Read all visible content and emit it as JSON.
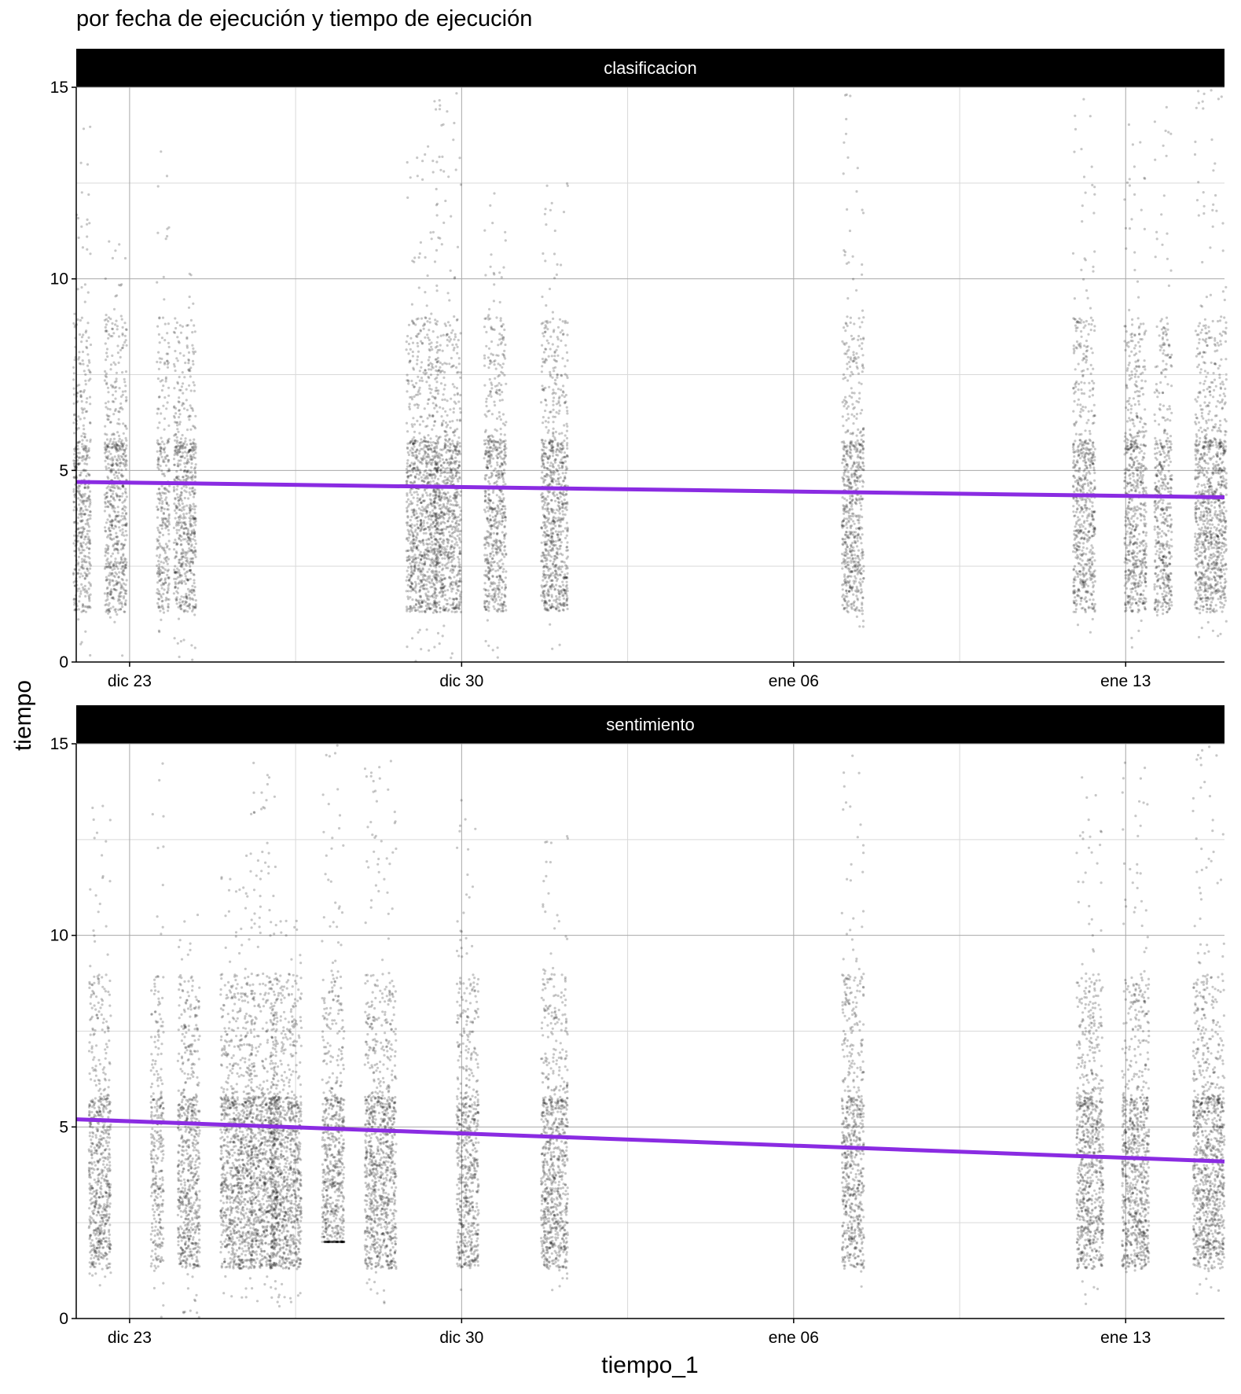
{
  "chart_data": {
    "type": "scatter",
    "title": "por fecha de ejecución y tiempo de ejecución",
    "xlabel": "tiempo_1",
    "ylabel": "tiempo",
    "xlim": [
      "2023-12-21T21:00",
      "2024-01-15T02:00"
    ],
    "ylim": [
      0,
      15
    ],
    "x_ticks": [
      {
        "date": "2023-12-23",
        "label": "dic 23"
      },
      {
        "date": "2023-12-30",
        "label": "dic 30"
      },
      {
        "date": "2024-01-06",
        "label": "ene 06"
      },
      {
        "date": "2024-01-13",
        "label": "ene 13"
      }
    ],
    "y_ticks": [
      0,
      5,
      10,
      15
    ],
    "grid": true,
    "point_color": "#000000",
    "trend_color": "#8a2be2",
    "facets": [
      {
        "name": "clasificacion",
        "trend": {
          "start": {
            "x": "2023-12-21T21:00",
            "y": 4.7
          },
          "end": {
            "x": "2024-01-15T02:00",
            "y": 4.3
          }
        },
        "clusters": [
          {
            "x": "2023-12-22T00:00",
            "ymin": 0,
            "ymax": 14.5,
            "density": 2
          },
          {
            "x": "2023-12-22T17:00",
            "ymin": 0,
            "ymax": 11.6,
            "density": 3
          },
          {
            "x": "2023-12-23T17:00",
            "ymin": 0.5,
            "ymax": 13.5,
            "density": 1
          },
          {
            "x": "2023-12-24T04:00",
            "ymin": 0,
            "ymax": 10.6,
            "density": 3
          },
          {
            "x": "2023-12-29T04:00",
            "ymin": 0,
            "ymax": 13.5,
            "density": 5
          },
          {
            "x": "2023-12-29T17:00",
            "ymin": 0,
            "ymax": 15,
            "density": 4
          },
          {
            "x": "2023-12-30T17:00",
            "ymin": 0,
            "ymax": 12.5,
            "density": 3
          },
          {
            "x": "2023-12-31T23:00",
            "ymin": 0.3,
            "ymax": 12.5,
            "density": 4
          },
          {
            "x": "2024-01-07T06:00",
            "ymin": 0.5,
            "ymax": 15,
            "density": 3
          },
          {
            "x": "2024-01-12T03:00",
            "ymin": 0.3,
            "ymax": 14.7,
            "density": 3
          },
          {
            "x": "2024-01-13T05:00",
            "ymin": 0.3,
            "ymax": 14.5,
            "density": 3
          },
          {
            "x": "2024-01-13T19:00",
            "ymin": 1,
            "ymax": 15,
            "density": 2
          },
          {
            "x": "2024-01-14T19:00",
            "ymin": 0.3,
            "ymax": 15,
            "density": 5
          }
        ]
      },
      {
        "name": "sentimiento",
        "trend": {
          "start": {
            "x": "2023-12-21T21:00",
            "y": 5.2
          },
          "end": {
            "x": "2024-01-15T02:00",
            "y": 4.1
          }
        },
        "clusters": [
          {
            "x": "2023-12-22T09:00",
            "ymin": 0,
            "ymax": 13.6,
            "density": 3
          },
          {
            "x": "2023-12-23T14:00",
            "ymin": 0,
            "ymax": 14.7,
            "density": 1
          },
          {
            "x": "2023-12-24T06:00",
            "ymin": 0,
            "ymax": 10.6,
            "density": 3
          },
          {
            "x": "2023-12-25T06:00",
            "ymin": 0.5,
            "ymax": 12.2,
            "density": 5
          },
          {
            "x": "2023-12-25T20:00",
            "ymin": 0.3,
            "ymax": 14.6,
            "density": 4
          },
          {
            "x": "2023-12-26T07:00",
            "ymin": 0.3,
            "ymax": 10.7,
            "density": 5
          },
          {
            "x": "2023-12-27T07:00",
            "ymin": 2,
            "ymax": 15,
            "density": 3
          },
          {
            "x": "2023-12-28T07:00",
            "ymin": 0.3,
            "ymax": 14.7,
            "density": 5
          },
          {
            "x": "2023-12-30T03:00",
            "ymin": 0.3,
            "ymax": 13.6,
            "density": 3
          },
          {
            "x": "2023-12-31T23:00",
            "ymin": 0.7,
            "ymax": 12.6,
            "density": 4
          },
          {
            "x": "2024-01-07T06:00",
            "ymin": 0,
            "ymax": 14.7,
            "density": 3
          },
          {
            "x": "2024-01-12T06:00",
            "ymin": 0.3,
            "ymax": 14.6,
            "density": 4
          },
          {
            "x": "2024-01-13T05:00",
            "ymin": 1,
            "ymax": 14.6,
            "density": 4
          },
          {
            "x": "2024-01-14T18:00",
            "ymin": 0.3,
            "ymax": 15,
            "density": 5
          }
        ]
      }
    ]
  }
}
